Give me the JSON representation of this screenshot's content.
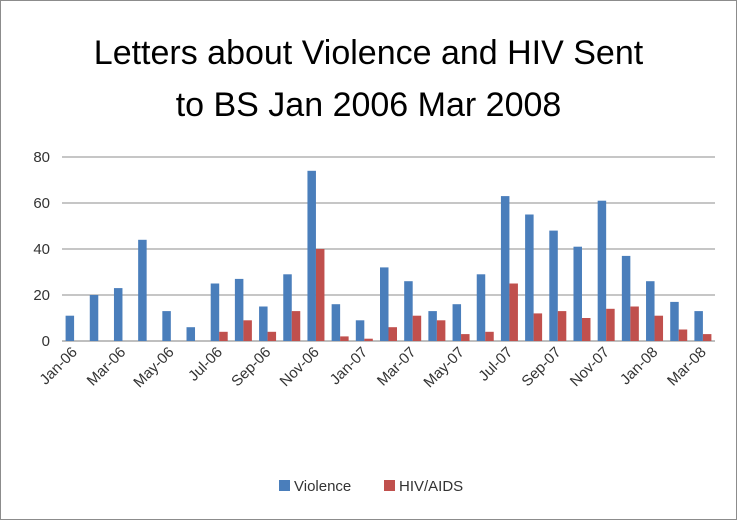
{
  "chart_data": {
    "type": "bar",
    "title_line1": "Letters about Violence and HIV Sent",
    "title_line2": "to BS Jan 2006 Mar 2008",
    "xlabel": "",
    "ylabel": "",
    "ylim": [
      0,
      80
    ],
    "yticks": [
      0,
      20,
      40,
      60,
      80
    ],
    "grid": true,
    "legend_position": "bottom",
    "categories": [
      "Jan-06",
      "Feb-06",
      "Mar-06",
      "Apr-06",
      "May-06",
      "Jun-06",
      "Jul-06",
      "Aug-06",
      "Sep-06",
      "Oct-06",
      "Nov-06",
      "Dec-06",
      "Jan-07",
      "Feb-07",
      "Mar-07",
      "Apr-07",
      "May-07",
      "Jun-07",
      "Jul-07",
      "Aug-07",
      "Sep-07",
      "Oct-07",
      "Nov-07",
      "Dec-07",
      "Jan-08",
      "Feb-08",
      "Mar-08"
    ],
    "tick_labels": [
      "Jan-06",
      "Mar-06",
      "May-06",
      "Jul-06",
      "Sep-06",
      "Nov-06",
      "Jan-07",
      "Mar-07",
      "May-07",
      "Jul-07",
      "Sep-07",
      "Nov-07",
      "Jan-08",
      "Mar-08"
    ],
    "series": [
      {
        "name": "Violence",
        "color": "#4a7ebb",
        "values": [
          11,
          20,
          23,
          44,
          13,
          6,
          25,
          27,
          15,
          29,
          74,
          16,
          9,
          32,
          26,
          13,
          16,
          29,
          63,
          55,
          48,
          41,
          61,
          37,
          26,
          17,
          13
        ]
      },
      {
        "name": "HIV/AIDS",
        "color": "#c0504d",
        "values": [
          0,
          0,
          0,
          0,
          0,
          0,
          4,
          9,
          4,
          13,
          40,
          2,
          1,
          6,
          11,
          9,
          3,
          4,
          25,
          12,
          13,
          10,
          14,
          15,
          11,
          5,
          3
        ]
      }
    ]
  }
}
